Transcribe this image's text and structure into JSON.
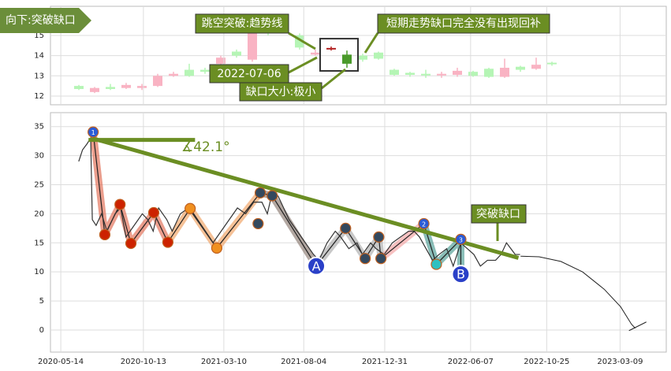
{
  "chart_data": [
    {
      "type": "candlestick",
      "annotations": [
        "向下:突破缺口",
        "跳空突破:趋势线",
        "短期走势缺口完全没有出现回补",
        "2022-07-06",
        "缺口大小:极小"
      ],
      "xlim": [
        -1.8,
        37.25
      ],
      "ylim": [
        11.57,
        16.44
      ],
      "yticks": [
        12,
        13,
        14,
        15
      ],
      "grid": true,
      "up_color": "#f9b3c3",
      "down_color": "#b5f5b5",
      "highlight": {
        "indices": [
          16,
          17
        ],
        "up_color": "#b22222",
        "down_color": "#4a9a2a"
      },
      "open": [
        12.5,
        12.2,
        12.45,
        12.4,
        12.4,
        12.5,
        13.0,
        13.3,
        13.3,
        13.6,
        14.2,
        13.8,
        15.3,
        15.6,
        15.0,
        14.05,
        14.35,
        14.05,
        14.0,
        14.15,
        13.3,
        13.15,
        13.1,
        13.05,
        13.05,
        13.2,
        13.35,
        12.95,
        13.45,
        13.35,
        13.65
      ],
      "high": [
        12.55,
        12.45,
        12.6,
        12.65,
        12.6,
        13.1,
        13.2,
        13.6,
        13.4,
        14.0,
        14.3,
        15.4,
        15.5,
        15.8,
        15.1,
        14.3,
        14.45,
        14.25,
        14.1,
        14.2,
        13.35,
        13.2,
        13.3,
        13.2,
        13.4,
        13.25,
        13.4,
        13.85,
        13.5,
        13.9,
        13.7
      ],
      "low": [
        12.3,
        12.15,
        12.3,
        12.35,
        12.3,
        12.45,
        12.95,
        12.95,
        13.1,
        13.5,
        13.9,
        13.7,
        15.0,
        15.3,
        14.3,
        14.0,
        14.25,
        13.4,
        13.7,
        13.8,
        13.0,
        12.95,
        12.9,
        12.9,
        12.95,
        12.95,
        12.9,
        12.9,
        13.2,
        13.3,
        13.5
      ],
      "close": [
        12.35,
        12.4,
        12.35,
        12.55,
        12.5,
        13.0,
        13.1,
        13.0,
        13.2,
        13.9,
        14.0,
        15.2,
        15.1,
        15.4,
        14.4,
        14.15,
        14.38,
        13.6,
        13.8,
        13.85,
        13.05,
        13.05,
        13.05,
        13.1,
        13.25,
        13.0,
        12.95,
        13.4,
        13.3,
        13.55,
        13.6
      ]
    },
    {
      "type": "line",
      "x": [
        33,
        40,
        48,
        55,
        58,
        65,
        75,
        85,
        100,
        110,
        120,
        135,
        150,
        160,
        170,
        180,
        195,
        205,
        220,
        235,
        250,
        265,
        280,
        295,
        310,
        325,
        340,
        355,
        370,
        380,
        390,
        400,
        410,
        420,
        435,
        450,
        465,
        475,
        490,
        505,
        515,
        530,
        545,
        555,
        570,
        580,
        595,
        610,
        625,
        640,
        650,
        660,
        672,
        684,
        696,
        710,
        722,
        736,
        748,
        760,
        772,
        785,
        800,
        810,
        820,
        828,
        836,
        845
      ],
      "values": [
        29,
        31,
        32,
        33,
        19,
        18,
        20,
        17,
        20,
        21,
        16,
        18,
        20,
        19,
        17,
        21,
        19,
        17,
        20,
        21,
        19,
        17,
        15,
        17,
        19,
        21,
        20,
        22,
        22,
        20,
        24,
        23,
        21,
        19,
        17,
        15,
        13,
        12,
        15,
        17,
        16,
        14,
        15,
        13,
        15,
        14,
        13,
        15,
        16,
        17,
        17,
        16,
        14,
        12,
        13,
        14,
        11,
        15,
        14,
        13,
        11,
        12,
        12,
        13,
        15,
        14,
        13,
        13
      ],
      "color": "#333333",
      "xlim": [
        -19,
        1114
      ],
      "ylim": [
        -3.8,
        37.4
      ],
      "grid": true,
      "yticks": [
        0,
        5,
        10,
        15,
        20,
        25,
        30,
        35
      ],
      "xticks": [
        {
          "value": 0,
          "label": "2020-05-14"
        },
        {
          "value": 152,
          "label": "2020-10-13"
        },
        {
          "value": 300,
          "label": "2021-03-10"
        },
        {
          "value": 447,
          "label": "2021-08-04"
        },
        {
          "value": 596,
          "label": "2021-12-31"
        },
        {
          "value": 754,
          "label": "2022-06-07"
        },
        {
          "value": 894,
          "label": "2022-10-25"
        },
        {
          "value": 1029,
          "label": "2023-03-09"
        }
      ],
      "trendline": {
        "x": [
          57,
          842
        ],
        "values": [
          33.0,
          12.4
        ],
        "color": "#6b8e23"
      },
      "baseline": {
        "x": [
          51,
          247
        ],
        "values": [
          32.7,
          32.7
        ],
        "color": "#6b8e23"
      },
      "angle_label": "∡42.1°",
      "annotation": "突破缺口",
      "projection": {
        "x": [
          846,
          880,
          920,
          960,
          1000,
          1030,
          1050,
          1057
        ],
        "values": [
          12.7,
          12.6,
          11.8,
          10,
          7,
          4,
          1,
          0.3
        ],
        "color": "#222222"
      },
      "bands": [
        {
          "color": "#e06a50",
          "x": [
            59.5,
            81,
            109,
            129,
            171,
            197
          ],
          "values": [
            34.06,
            16.4,
            21.6,
            14.9,
            20.2,
            15.1
          ]
        },
        {
          "color": "#f0a060",
          "x": [
            197,
            238,
            287,
            367
          ],
          "values": [
            15.1,
            20.9,
            14.1,
            23.6
          ]
        },
        {
          "color": "#8a7a70",
          "x": [
            367,
            389,
            470
          ],
          "values": [
            23.6,
            23.1,
            11.0
          ]
        },
        {
          "color": "#aaaaaa",
          "x": [
            470,
            524,
            560,
            585,
            589
          ],
          "values": [
            11.0,
            17.5,
            12.3,
            16.0,
            12.3
          ]
        },
        {
          "color": "#f2a0a0",
          "x": [
            589,
            668
          ],
          "values": [
            12.3,
            18.3
          ]
        },
        {
          "color": "#4a9a90",
          "x": [
            668,
            691,
            736,
            736
          ],
          "values": [
            18.3,
            11.3,
            15.6,
            9.6
          ]
        }
      ],
      "pivots": [
        {
          "x": 59.5,
          "y": 34.06,
          "color": "#2a5bd7",
          "label": "1"
        },
        {
          "x": 81,
          "y": 16.4,
          "color": "#cc2200"
        },
        {
          "x": 109,
          "y": 21.6,
          "color": "#cc2200"
        },
        {
          "x": 129,
          "y": 14.9,
          "color": "#cc2200"
        },
        {
          "x": 171,
          "y": 20.2,
          "color": "#cc2200"
        },
        {
          "x": 197,
          "y": 15.1,
          "color": "#cc2200"
        },
        {
          "x": 238,
          "y": 20.9,
          "color": "#f09020"
        },
        {
          "x": 287,
          "y": 14.1,
          "color": "#f09020"
        },
        {
          "x": 363,
          "y": 18.3,
          "color": "#34495e"
        },
        {
          "x": 367,
          "y": 23.6,
          "color": "#34495e"
        },
        {
          "x": 389,
          "y": 23.1,
          "color": "#34495e"
        },
        {
          "x": 470,
          "y": 11.0,
          "color": "#2a40c8",
          "label": "A"
        },
        {
          "x": 524,
          "y": 17.5,
          "color": "#34495e"
        },
        {
          "x": 560,
          "y": 12.3,
          "color": "#34495e"
        },
        {
          "x": 585,
          "y": 16.0,
          "color": "#34495e"
        },
        {
          "x": 589,
          "y": 12.3,
          "color": "#34495e"
        },
        {
          "x": 668,
          "y": 18.3,
          "color": "#2a5bd7",
          "label": "2"
        },
        {
          "x": 691,
          "y": 11.3,
          "color": "#30c0c0"
        },
        {
          "x": 736,
          "y": 15.6,
          "color": "#2a5bd7",
          "label": "3"
        },
        {
          "x": 736,
          "y": 9.6,
          "color": "#2a40c8",
          "label": "B"
        }
      ]
    }
  ]
}
